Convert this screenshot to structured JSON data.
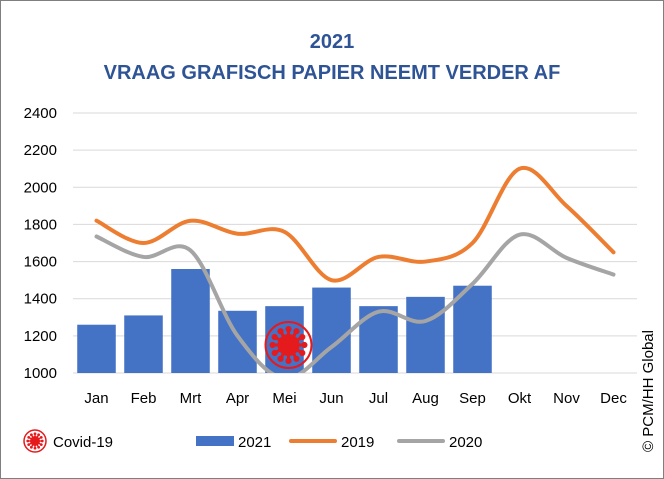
{
  "chart_data": {
    "type": "bar",
    "title": "2021",
    "subtitle": "VRAAG GRAFISCH PAPIER NEEMT VERDER AF",
    "categories": [
      "Jan",
      "Feb",
      "Mrt",
      "Apr",
      "Mei",
      "Jun",
      "Jul",
      "Aug",
      "Sep",
      "Okt",
      "Nov",
      "Dec"
    ],
    "ylim": [
      1000,
      2400
    ],
    "yticks": [
      1000,
      1200,
      1400,
      1600,
      1800,
      2000,
      2200,
      2400
    ],
    "grid": true,
    "legend_position": "bottom",
    "series": [
      {
        "name": "2021",
        "kind": "bar",
        "color": "#4472c4",
        "values": [
          1260,
          1310,
          1560,
          1335,
          1360,
          1460,
          1360,
          1410,
          1470,
          null,
          null,
          null
        ]
      },
      {
        "name": "2019",
        "kind": "line",
        "color": "#ed7d31",
        "values": [
          1820,
          1700,
          1820,
          1750,
          1760,
          1500,
          1625,
          1600,
          1700,
          2100,
          1900,
          1650
        ]
      },
      {
        "name": "2020",
        "kind": "line",
        "color": "#a5a5a5",
        "values": [
          1735,
          1625,
          1660,
          1200,
          970,
          1140,
          1330,
          1280,
          1480,
          1745,
          1620,
          1530
        ]
      }
    ],
    "annotation": {
      "label": "Covid-19",
      "category": "Mei",
      "icon": "coronavirus-icon",
      "color": "#e41a1c"
    },
    "source": "© PCM/HH Global"
  }
}
